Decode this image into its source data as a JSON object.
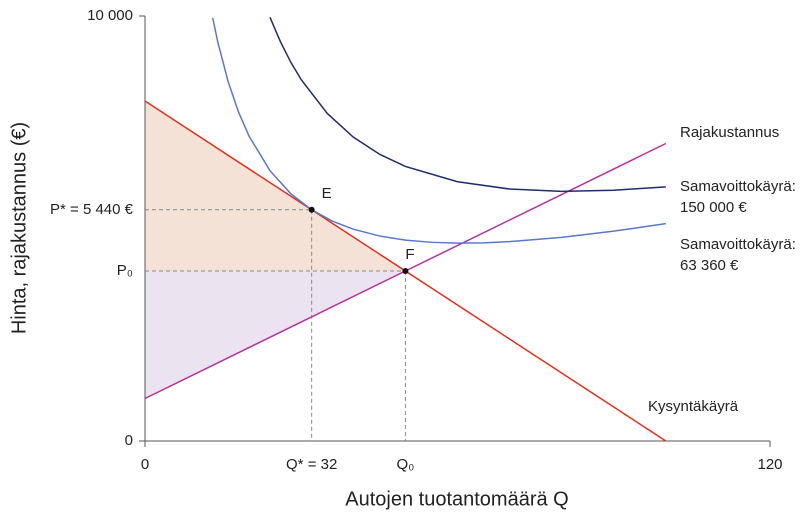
{
  "chart_data": {
    "type": "line",
    "x_label": "Autojen tuotantomäärä Q",
    "y_label": "Hinta, rajakustannus (€)",
    "xlim": [
      0,
      120
    ],
    "ylim": [
      0,
      10000
    ],
    "xticks": [
      0,
      120
    ],
    "yticks": [
      0,
      {
        "value": 10000,
        "label": "10 000"
      }
    ],
    "series": [
      {
        "name": "Kysyntäkäyrä",
        "color": "#e0301e",
        "x": [
          0,
          100
        ],
        "values": [
          8000,
          0
        ]
      },
      {
        "name": "Rajakustannus",
        "color": "#b5339f",
        "x": [
          0,
          100
        ],
        "values": [
          1000,
          7000
        ]
      },
      {
        "name": "Samavoittokäyrä:",
        "sublabel": "150 000 €",
        "color": "#1f2d6b",
        "x": [
          24,
          26,
          28,
          30,
          35,
          40,
          45,
          50,
          60,
          70,
          80,
          90,
          100
        ],
        "values": [
          9970,
          9395,
          8911,
          8500,
          7707,
          7150,
          6750,
          6460,
          6100,
          5929,
          5875,
          5900,
          5980
        ]
      },
      {
        "name": "Samavoittokäyrä:",
        "sublabel": "63 360 €",
        "color": "#5a78c8",
        "x": [
          13,
          14,
          16,
          18,
          20,
          24,
          28,
          32,
          36,
          40,
          45,
          50,
          55,
          60,
          65,
          70,
          80,
          90,
          100
        ],
        "values": [
          9956,
          9374,
          8440,
          7727,
          7168,
          6360,
          5817,
          5440,
          5173,
          4984,
          4825,
          4727,
          4675,
          4656,
          4663,
          4691,
          4792,
          4937,
          5114
        ]
      }
    ],
    "points": [
      {
        "label": "E",
        "x": 32,
        "y": 5440,
        "x_label": "Q* = 32",
        "y_label": "P* = 5 440 €"
      },
      {
        "label": "F",
        "x": 50,
        "y": 4000,
        "x_label": "Q₀",
        "y_label": "P₀"
      }
    ],
    "fill_colors": [
      "#f4e2d6",
      "#ece3f1"
    ]
  }
}
